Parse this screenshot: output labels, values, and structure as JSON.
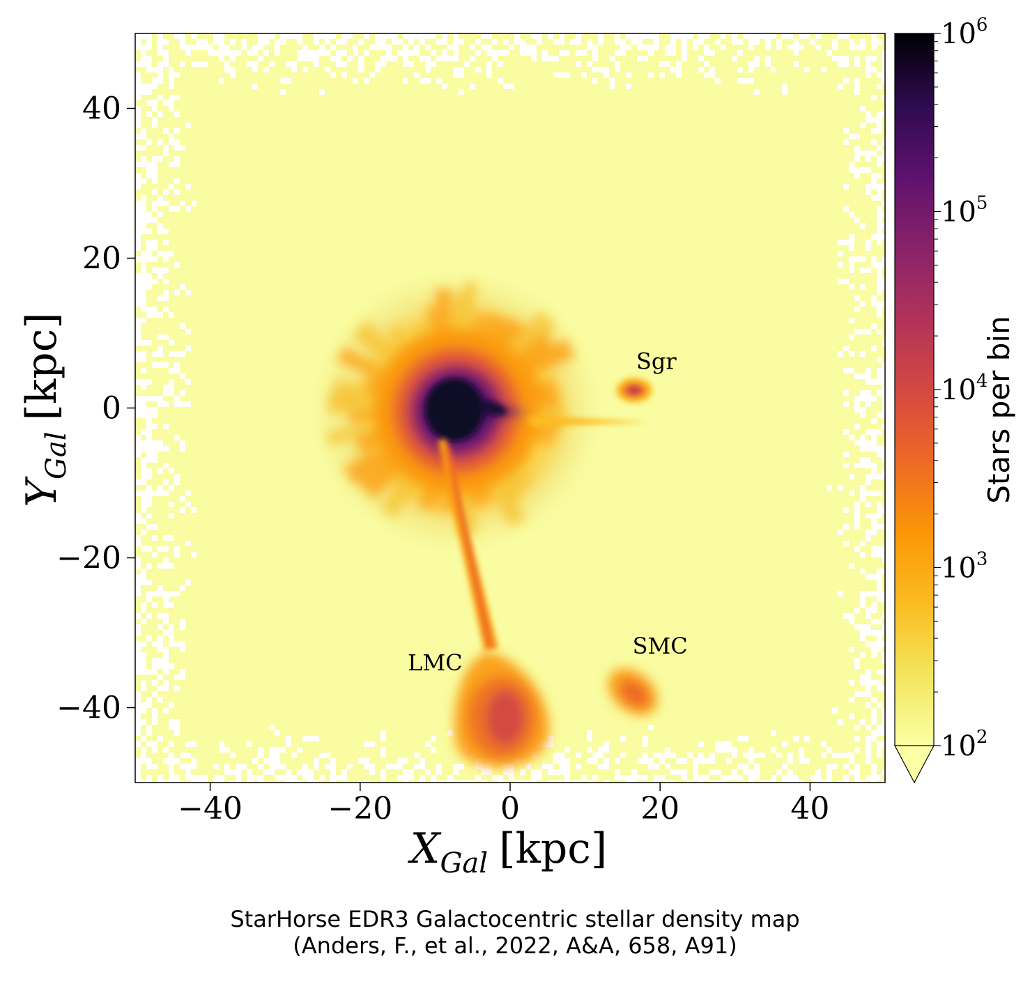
{
  "chart_data": {
    "type": "heatmap",
    "xlabel_main": "X",
    "xlabel_sub": "Gal",
    "xlabel_unit": "[kpc]",
    "ylabel_main": "Y",
    "ylabel_sub": "Gal",
    "ylabel_unit": "[kpc]",
    "xlim": [
      -50,
      50
    ],
    "ylim": [
      -50,
      50
    ],
    "xticks": [
      -40,
      -20,
      0,
      20,
      40
    ],
    "yticks": [
      -40,
      -20,
      0,
      20,
      40
    ],
    "xtick_labels": [
      "−40",
      "−20",
      "0",
      "20",
      "40"
    ],
    "ytick_labels": [
      "−40",
      "−20",
      "0",
      "20",
      "40"
    ],
    "colorbar": {
      "title": "Stars per bin",
      "scale": "log",
      "range": [
        100,
        1000000
      ],
      "ticks": [
        {
          "value": 1000000,
          "base": "10",
          "exp": "6"
        },
        {
          "value": 100000,
          "base": "10",
          "exp": "5"
        },
        {
          "value": 10000,
          "base": "10",
          "exp": "4"
        },
        {
          "value": 1000,
          "base": "10",
          "exp": "3"
        },
        {
          "value": 100,
          "base": "10",
          "exp": "2"
        }
      ],
      "extend": "min"
    },
    "annotations": [
      {
        "text": "Sgr",
        "x": 19.5,
        "y": 5.2
      },
      {
        "text": "SMC",
        "x": 20,
        "y": -32.8
      },
      {
        "text": "LMC",
        "x": -10,
        "y": -35
      }
    ],
    "features": [
      {
        "name": "Galactic bulge",
        "x": -7.5,
        "y": 0,
        "log_density": 6
      },
      {
        "name": "Sgr",
        "x": 16.5,
        "y": 2.5,
        "log_density": 3.7
      },
      {
        "name": "LMC",
        "x": -1,
        "y": -41,
        "log_density": 3.6
      },
      {
        "name": "SMC",
        "x": 16.5,
        "y": -38.5,
        "log_density": 3.5
      }
    ]
  },
  "colors": {
    "background": "#f9fca0",
    "colormap": "inferno"
  },
  "caption": {
    "line1": "StarHorse EDR3 Galactocentric stellar density map",
    "line2": "(Anders, F., et al., 2022, A&A, 658, A91)"
  }
}
